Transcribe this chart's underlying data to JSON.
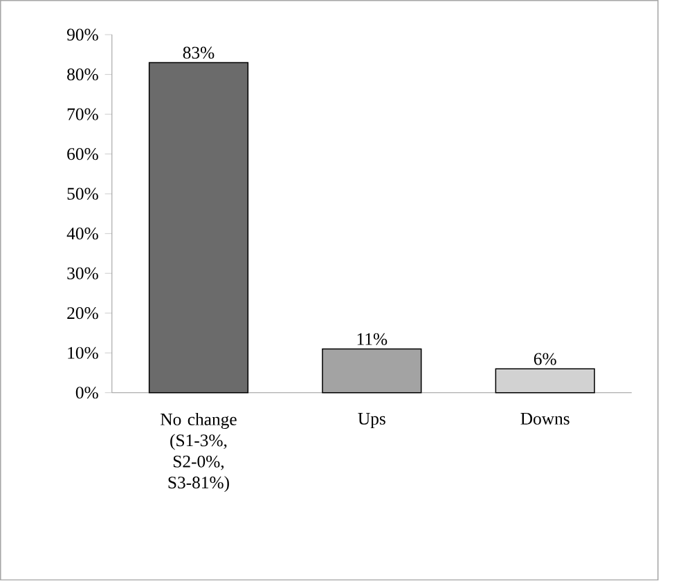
{
  "chart_data": {
    "type": "bar",
    "categories": [
      "No change (S1-3%, S2-0%, S3-81%)",
      "Ups",
      "Downs"
    ],
    "values": [
      83,
      11,
      6
    ],
    "colors": [
      "#6b6b6b",
      "#a3a3a3",
      "#d2d2d2"
    ],
    "value_labels": [
      "83%",
      "11%",
      "6%"
    ],
    "ylim": [
      0,
      90
    ],
    "yticks": [
      {
        "value": 0,
        "label": "0%"
      },
      {
        "value": 10,
        "label": "10%"
      },
      {
        "value": 20,
        "label": "20%"
      },
      {
        "value": 30,
        "label": "30%"
      },
      {
        "value": 40,
        "label": "40%"
      },
      {
        "value": 50,
        "label": "50%"
      },
      {
        "value": 60,
        "label": "60%"
      },
      {
        "value": 70,
        "label": "70%"
      },
      {
        "value": 80,
        "label": "80%"
      },
      {
        "value": 90,
        "label": "90%"
      }
    ]
  }
}
